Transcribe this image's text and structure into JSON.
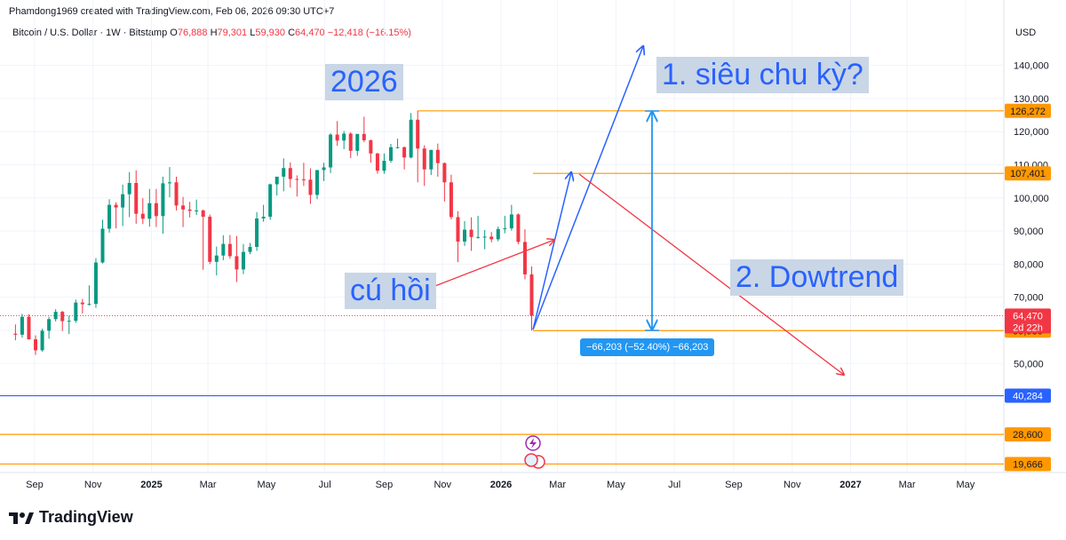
{
  "header": {
    "attribution": "Phamdong1969 created with TradingView.com, Feb 06, 2026 09:30 UTC+7",
    "symbol": "Bitcoin / U.S. Dollar · 1W · Bitstamp",
    "o_label": "O",
    "o_value": "76,888",
    "h_label": "H",
    "h_value": "79,301",
    "l_label": "L",
    "l_value": "59,930",
    "c_label": "C",
    "c_value": "64,470",
    "change": "−12,418 (−16.15%)",
    "currency": "USD"
  },
  "footer": {
    "brand": "TradingView"
  },
  "annotations": {
    "year_label": "2026",
    "scenario1": "1. siêu chu kỳ?",
    "scenario2": "2. Dowtrend",
    "bounce": "cú hồi",
    "measure": "−66,203 (−52.40%) −66,203"
  },
  "colors": {
    "up": "#089981",
    "down": "#f23645",
    "hline": "#ff9800",
    "blue": "#2962ff",
    "accent": "#2196f3"
  },
  "chart_data": {
    "type": "candlestick",
    "title": "Bitcoin / U.S. Dollar · 1W · Bitstamp",
    "interval": "1W",
    "ylim": [
      17000,
      150000
    ],
    "y_ticks": [
      50000,
      60000,
      70000,
      80000,
      90000,
      100000,
      110000,
      120000,
      130000,
      140000
    ],
    "y_tick_labels": [
      "50,000",
      "60,000",
      "70,000",
      "80,000",
      "90,000",
      "100,000",
      "110,000",
      "120,000",
      "130,000",
      "140,000"
    ],
    "x_ticks": [
      "2024-09-01",
      "2024-11-01",
      "2025-01-01",
      "2025-03-01",
      "2025-05-01",
      "2025-07-01",
      "2025-09-01",
      "2025-11-01",
      "2026-01-01",
      "2026-03-01",
      "2026-05-01",
      "2026-07-01",
      "2026-09-01",
      "2026-11-01",
      "2027-01-01",
      "2027-03-01",
      "2027-05-01"
    ],
    "x_tick_labels": [
      "Sep",
      "Nov",
      "2025",
      "Mar",
      "May",
      "Jul",
      "Sep",
      "Nov",
      "2026",
      "Mar",
      "May",
      "Jul",
      "Sep",
      "Nov",
      "2027",
      "Mar",
      "May"
    ],
    "x_range": [
      "2024-08-07",
      "2027-06-10"
    ],
    "horizontal_levels": [
      {
        "value": 126272,
        "label": "126,272",
        "color": "#ff9800"
      },
      {
        "value": 107401,
        "label": "107,401",
        "color": "#ff9800"
      },
      {
        "value": 59930,
        "label": "59,930",
        "color": "#ff9800"
      },
      {
        "value": 40284,
        "label": "40,284",
        "color": "#2962ff"
      },
      {
        "value": 28600,
        "label": "28,600",
        "color": "#ff9800"
      },
      {
        "value": 19666,
        "label": "19,666",
        "color": "#ff9800"
      }
    ],
    "last_price": {
      "value": 64470,
      "label": "64,470",
      "countdown": "2d 22h"
    },
    "candles": [
      {
        "date": "2024-08-12",
        "o": 59000,
        "h": 61800,
        "l": 57000,
        "c": 58700
      },
      {
        "date": "2024-08-19",
        "o": 58700,
        "h": 65000,
        "l": 57800,
        "c": 64100
      },
      {
        "date": "2024-08-26",
        "o": 64100,
        "h": 64900,
        "l": 57200,
        "c": 57300
      },
      {
        "date": "2024-09-02",
        "o": 57300,
        "h": 58500,
        "l": 52600,
        "c": 54000
      },
      {
        "date": "2024-09-09",
        "o": 54000,
        "h": 60500,
        "l": 53600,
        "c": 59900
      },
      {
        "date": "2024-09-16",
        "o": 59900,
        "h": 64100,
        "l": 57500,
        "c": 63400
      },
      {
        "date": "2024-09-23",
        "o": 63400,
        "h": 66400,
        "l": 62700,
        "c": 65600
      },
      {
        "date": "2024-09-30",
        "o": 65600,
        "h": 65900,
        "l": 59800,
        "c": 62800
      },
      {
        "date": "2024-10-07",
        "o": 62800,
        "h": 64400,
        "l": 58900,
        "c": 62900
      },
      {
        "date": "2024-10-14",
        "o": 62900,
        "h": 69300,
        "l": 62300,
        "c": 68400
      },
      {
        "date": "2024-10-21",
        "o": 68400,
        "h": 69500,
        "l": 65100,
        "c": 67900
      },
      {
        "date": "2024-10-28",
        "o": 67900,
        "h": 73600,
        "l": 67500,
        "c": 68000
      },
      {
        "date": "2024-11-04",
        "o": 68000,
        "h": 81800,
        "l": 66800,
        "c": 80500
      },
      {
        "date": "2024-11-11",
        "o": 80500,
        "h": 93400,
        "l": 80200,
        "c": 90700
      },
      {
        "date": "2024-11-18",
        "o": 90700,
        "h": 99600,
        "l": 89500,
        "c": 97900
      },
      {
        "date": "2024-11-25",
        "o": 97900,
        "h": 98700,
        "l": 90800,
        "c": 97100
      },
      {
        "date": "2024-12-02",
        "o": 97100,
        "h": 104000,
        "l": 91500,
        "c": 101100
      },
      {
        "date": "2024-12-09",
        "o": 101100,
        "h": 107800,
        "l": 94200,
        "c": 104500
      },
      {
        "date": "2024-12-16",
        "o": 104500,
        "h": 108300,
        "l": 92200,
        "c": 95200
      },
      {
        "date": "2024-12-23",
        "o": 95200,
        "h": 99900,
        "l": 92100,
        "c": 93700
      },
      {
        "date": "2024-12-30",
        "o": 93700,
        "h": 102700,
        "l": 91300,
        "c": 98400
      },
      {
        "date": "2025-01-06",
        "o": 98400,
        "h": 102700,
        "l": 91200,
        "c": 94500
      },
      {
        "date": "2025-01-13",
        "o": 94500,
        "h": 106400,
        "l": 89200,
        "c": 104400
      },
      {
        "date": "2025-01-20",
        "o": 104400,
        "h": 109300,
        "l": 100200,
        "c": 104700
      },
      {
        "date": "2025-01-27",
        "o": 104700,
        "h": 106400,
        "l": 96200,
        "c": 97700
      },
      {
        "date": "2025-02-03",
        "o": 97700,
        "h": 100300,
        "l": 91200,
        "c": 96500
      },
      {
        "date": "2025-02-10",
        "o": 96500,
        "h": 98800,
        "l": 94100,
        "c": 96100
      },
      {
        "date": "2025-02-17",
        "o": 96100,
        "h": 99500,
        "l": 94800,
        "c": 96200
      },
      {
        "date": "2025-02-24",
        "o": 96200,
        "h": 96500,
        "l": 78300,
        "c": 94300
      },
      {
        "date": "2025-03-03",
        "o": 94300,
        "h": 95000,
        "l": 80000,
        "c": 80700
      },
      {
        "date": "2025-03-10",
        "o": 80700,
        "h": 85300,
        "l": 76600,
        "c": 82600
      },
      {
        "date": "2025-03-17",
        "o": 82600,
        "h": 88700,
        "l": 81200,
        "c": 86100
      },
      {
        "date": "2025-03-24",
        "o": 86100,
        "h": 88800,
        "l": 81600,
        "c": 82400
      },
      {
        "date": "2025-03-31",
        "o": 82400,
        "h": 88500,
        "l": 74600,
        "c": 78400
      },
      {
        "date": "2025-04-07",
        "o": 78400,
        "h": 86100,
        "l": 77000,
        "c": 83700
      },
      {
        "date": "2025-04-14",
        "o": 83700,
        "h": 86400,
        "l": 83000,
        "c": 85200
      },
      {
        "date": "2025-04-21",
        "o": 85200,
        "h": 95700,
        "l": 84000,
        "c": 93800
      },
      {
        "date": "2025-04-28",
        "o": 93800,
        "h": 97900,
        "l": 92800,
        "c": 94300
      },
      {
        "date": "2025-05-05",
        "o": 94300,
        "h": 104300,
        "l": 93400,
        "c": 104100
      },
      {
        "date": "2025-05-12",
        "o": 104100,
        "h": 105800,
        "l": 100700,
        "c": 106400
      },
      {
        "date": "2025-05-19",
        "o": 106400,
        "h": 111900,
        "l": 102000,
        "c": 109000
      },
      {
        "date": "2025-05-26",
        "o": 109000,
        "h": 110700,
        "l": 103100,
        "c": 105700
      },
      {
        "date": "2025-06-02",
        "o": 105700,
        "h": 106800,
        "l": 100400,
        "c": 105600
      },
      {
        "date": "2025-06-09",
        "o": 105600,
        "h": 110600,
        "l": 103600,
        "c": 105500
      },
      {
        "date": "2025-06-16",
        "o": 105500,
        "h": 108900,
        "l": 98200,
        "c": 100900
      },
      {
        "date": "2025-06-23",
        "o": 100900,
        "h": 108400,
        "l": 99600,
        "c": 108400
      },
      {
        "date": "2025-06-30",
        "o": 108400,
        "h": 110600,
        "l": 105100,
        "c": 109200
      },
      {
        "date": "2025-07-07",
        "o": 109200,
        "h": 119500,
        "l": 107500,
        "c": 119100
      },
      {
        "date": "2025-07-14",
        "o": 119100,
        "h": 123200,
        "l": 115700,
        "c": 117300
      },
      {
        "date": "2025-07-21",
        "o": 117300,
        "h": 120200,
        "l": 114700,
        "c": 119400
      },
      {
        "date": "2025-07-28",
        "o": 119400,
        "h": 119800,
        "l": 112000,
        "c": 114200
      },
      {
        "date": "2025-08-04",
        "o": 114200,
        "h": 119300,
        "l": 112700,
        "c": 119300
      },
      {
        "date": "2025-08-11",
        "o": 119300,
        "h": 124500,
        "l": 116800,
        "c": 117400
      },
      {
        "date": "2025-08-18",
        "o": 117400,
        "h": 117600,
        "l": 110600,
        "c": 113400
      },
      {
        "date": "2025-08-25",
        "o": 113400,
        "h": 113600,
        "l": 107300,
        "c": 108200
      },
      {
        "date": "2025-09-01",
        "o": 108200,
        "h": 113400,
        "l": 107300,
        "c": 111200
      },
      {
        "date": "2025-09-08",
        "o": 111200,
        "h": 116300,
        "l": 110600,
        "c": 115300
      },
      {
        "date": "2025-09-15",
        "o": 115300,
        "h": 117900,
        "l": 114900,
        "c": 115300
      },
      {
        "date": "2025-09-22",
        "o": 115300,
        "h": 115500,
        "l": 108600,
        "c": 112200
      },
      {
        "date": "2025-09-29",
        "o": 112200,
        "h": 125600,
        "l": 111900,
        "c": 123600
      },
      {
        "date": "2025-10-06",
        "o": 123600,
        "h": 126272,
        "l": 104700,
        "c": 114900
      },
      {
        "date": "2025-10-13",
        "o": 114900,
        "h": 115900,
        "l": 103600,
        "c": 108600
      },
      {
        "date": "2025-10-20",
        "o": 108600,
        "h": 114000,
        "l": 106900,
        "c": 114500
      },
      {
        "date": "2025-10-27",
        "o": 114500,
        "h": 116400,
        "l": 106400,
        "c": 110500
      },
      {
        "date": "2025-11-03",
        "o": 110500,
        "h": 110700,
        "l": 98900,
        "c": 104700
      },
      {
        "date": "2025-11-10",
        "o": 104700,
        "h": 107000,
        "l": 93500,
        "c": 94200
      },
      {
        "date": "2025-11-17",
        "o": 94200,
        "h": 96000,
        "l": 80600,
        "c": 86800
      },
      {
        "date": "2025-11-24",
        "o": 86800,
        "h": 93000,
        "l": 85500,
        "c": 90400
      },
      {
        "date": "2025-12-01",
        "o": 90400,
        "h": 94100,
        "l": 84000,
        "c": 88200
      },
      {
        "date": "2025-12-08",
        "o": 88200,
        "h": 94600,
        "l": 87700,
        "c": 88200
      },
      {
        "date": "2025-12-15",
        "o": 88200,
        "h": 90300,
        "l": 84500,
        "c": 88300
      },
      {
        "date": "2025-12-22",
        "o": 88300,
        "h": 89700,
        "l": 86600,
        "c": 87500
      },
      {
        "date": "2025-12-29",
        "o": 87500,
        "h": 91300,
        "l": 86900,
        "c": 90600
      },
      {
        "date": "2026-01-05",
        "o": 90600,
        "h": 94600,
        "l": 89300,
        "c": 90800
      },
      {
        "date": "2026-01-12",
        "o": 90800,
        "h": 97900,
        "l": 90100,
        "c": 95000
      },
      {
        "date": "2026-01-19",
        "o": 95000,
        "h": 95300,
        "l": 86000,
        "c": 86700
      },
      {
        "date": "2026-01-26",
        "o": 86700,
        "h": 90500,
        "l": 75400,
        "c": 76900
      },
      {
        "date": "2026-02-02",
        "o": 76888,
        "h": 79301,
        "l": 59930,
        "c": 64470
      }
    ]
  }
}
